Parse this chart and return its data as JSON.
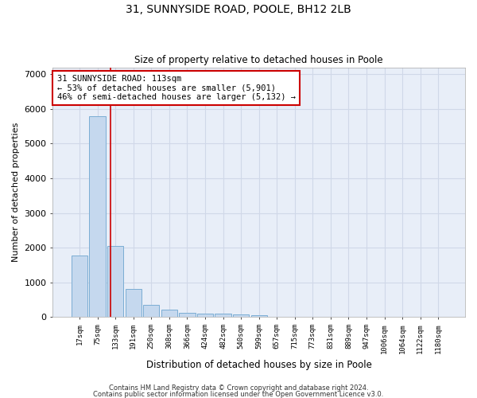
{
  "title1": "31, SUNNYSIDE ROAD, POOLE, BH12 2LB",
  "title2": "Size of property relative to detached houses in Poole",
  "xlabel": "Distribution of detached houses by size in Poole",
  "ylabel": "Number of detached properties",
  "categories": [
    "17sqm",
    "75sqm",
    "133sqm",
    "191sqm",
    "250sqm",
    "308sqm",
    "366sqm",
    "424sqm",
    "482sqm",
    "540sqm",
    "599sqm",
    "657sqm",
    "715sqm",
    "773sqm",
    "831sqm",
    "889sqm",
    "947sqm",
    "1006sqm",
    "1064sqm",
    "1122sqm",
    "1180sqm"
  ],
  "values": [
    1780,
    5780,
    2050,
    810,
    360,
    210,
    120,
    90,
    90,
    70,
    60,
    0,
    0,
    0,
    0,
    0,
    0,
    0,
    0,
    0,
    0
  ],
  "bar_color": "#c5d8ee",
  "bar_edge_color": "#7badd4",
  "vline_position": 1.72,
  "annotation_text": "31 SUNNYSIDE ROAD: 113sqm\n← 53% of detached houses are smaller (5,901)\n46% of semi-detached houses are larger (5,132) →",
  "annotation_box_facecolor": "#ffffff",
  "annotation_box_edgecolor": "#cc0000",
  "vline_color": "#cc0000",
  "ylim": [
    0,
    7200
  ],
  "yticks": [
    0,
    1000,
    2000,
    3000,
    4000,
    5000,
    6000,
    7000
  ],
  "background_color": "#e8eef8",
  "grid_color": "#d0d8e8",
  "footer1": "Contains HM Land Registry data © Crown copyright and database right 2024.",
  "footer2": "Contains public sector information licensed under the Open Government Licence v3.0."
}
